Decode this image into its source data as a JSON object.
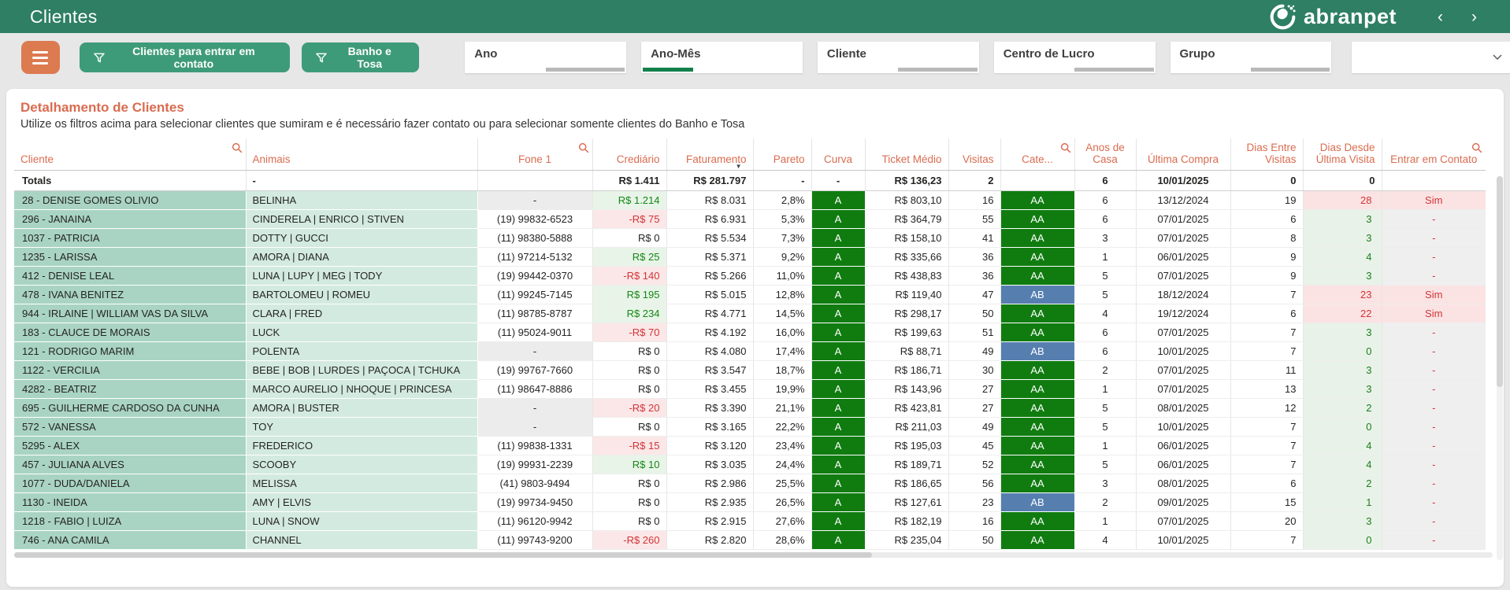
{
  "topbar": {
    "title": "Clientes",
    "brand": "abranpet",
    "nav_back": "‹",
    "nav_forward": "›"
  },
  "filters": {
    "buttons": [
      {
        "label": "Clientes para entrar em contato"
      },
      {
        "label": "Banho e Tosa"
      }
    ],
    "slicers": [
      {
        "label": "Ano",
        "has_selection": false
      },
      {
        "label": "Ano-Mês",
        "has_selection": true
      },
      {
        "label": "Cliente",
        "has_selection": false
      },
      {
        "label": "Centro de Lucro",
        "has_selection": false
      },
      {
        "label": "Grupo",
        "has_selection": false
      }
    ],
    "dropdown": {
      "value": ""
    }
  },
  "card": {
    "title": "Detalhamento de Clientes",
    "subtitle": "Utilize os filtros acima para selecionar clientes que sumiram e é necessário fazer contato ou para selecionar somente clientes do Banho e Tosa"
  },
  "colors": {
    "topbar_green": "#2E7F63",
    "button_green": "#3E9B79",
    "hamburger_orange": "#DC7A50",
    "header_coral": "#D96C50",
    "cliente_cell": "#A9D4C4",
    "animais_cell": "#D3EAE0",
    "badge_green": "#107C10",
    "badge_blue": "#567FB0",
    "positive_green": "#148714",
    "negative_red": "#D13438"
  },
  "table": {
    "columns": [
      {
        "key": "cliente",
        "label": "Cliente",
        "searchable": true
      },
      {
        "key": "animais",
        "label": "Animais"
      },
      {
        "key": "fone",
        "label": "Fone 1",
        "searchable": true
      },
      {
        "key": "crediario",
        "label": "Crediário"
      },
      {
        "key": "faturamento",
        "label": "Faturamento",
        "sorted": "desc"
      },
      {
        "key": "pareto",
        "label": "Pareto"
      },
      {
        "key": "curva",
        "label": "Curva"
      },
      {
        "key": "ticket",
        "label": "Ticket Médio"
      },
      {
        "key": "visitas",
        "label": "Visitas"
      },
      {
        "key": "cate",
        "label": "Cate...",
        "searchable": true
      },
      {
        "key": "anos",
        "label": "Anos de Casa"
      },
      {
        "key": "ultima",
        "label": "Última Compra"
      },
      {
        "key": "dias_entre",
        "label": "Dias Entre Visitas"
      },
      {
        "key": "dias_desde",
        "label": "Dias Desde Última Visita"
      },
      {
        "key": "contato",
        "label": "Entrar em Contato",
        "searchable": true
      }
    ],
    "totals": {
      "cliente": "Totals",
      "animais": "-",
      "fone": "",
      "crediario": "R$ 1.411",
      "faturamento": "R$ 281.797",
      "pareto": "-",
      "curva": "-",
      "ticket": "R$ 136,23",
      "visitas": "2",
      "cate": "",
      "anos": "6",
      "ultima": "10/01/2025",
      "dias_entre": "0",
      "dias_desde": "0",
      "contato": ""
    },
    "rows": [
      {
        "cliente": "28 - DENISE GOMES OLIVIO",
        "animais": "BELINHA",
        "fone": "-",
        "fone_empty": true,
        "crediario": "R$ 1.214",
        "crediario_v": "pos",
        "faturamento": "R$ 8.031",
        "pareto": "2,8%",
        "curva": "A",
        "ticket": "R$ 803,10",
        "visitas": "16",
        "cate": "AA",
        "anos": "6",
        "ultima": "13/12/2024",
        "dias_entre": "19",
        "dias_desde": "28",
        "dias_desde_v": "alert",
        "contato": "Sim",
        "contato_v": "sim"
      },
      {
        "cliente": "296 - JANAINA",
        "animais": "CINDERELA | ENRICO | STIVEN",
        "fone": "(19) 99832-6523",
        "fone_empty": false,
        "crediario": "-R$ 75",
        "crediario_v": "neg",
        "faturamento": "R$ 6.931",
        "pareto": "5,3%",
        "curva": "A",
        "ticket": "R$ 364,79",
        "visitas": "55",
        "cate": "AA",
        "anos": "6",
        "ultima": "07/01/2025",
        "dias_entre": "6",
        "dias_desde": "3",
        "dias_desde_v": "ok",
        "contato": "-",
        "contato_v": "dash"
      },
      {
        "cliente": "1037 - PATRICIA",
        "animais": "DOTTY | GUCCI",
        "fone": "(11) 98380-5888",
        "fone_empty": false,
        "crediario": "R$ 0",
        "crediario_v": "zero",
        "faturamento": "R$ 5.534",
        "pareto": "7,3%",
        "curva": "A",
        "ticket": "R$ 158,10",
        "visitas": "41",
        "cate": "AA",
        "anos": "3",
        "ultima": "07/01/2025",
        "dias_entre": "8",
        "dias_desde": "3",
        "dias_desde_v": "ok",
        "contato": "-",
        "contato_v": "dash"
      },
      {
        "cliente": "1235 - LARISSA",
        "animais": "AMORA | DIANA",
        "fone": "(11) 97214-5132",
        "fone_empty": false,
        "crediario": "R$ 25",
        "crediario_v": "pos",
        "faturamento": "R$ 5.371",
        "pareto": "9,2%",
        "curva": "A",
        "ticket": "R$ 335,66",
        "visitas": "36",
        "cate": "AA",
        "anos": "1",
        "ultima": "06/01/2025",
        "dias_entre": "9",
        "dias_desde": "4",
        "dias_desde_v": "ok",
        "contato": "-",
        "contato_v": "dash"
      },
      {
        "cliente": "412 - DENISE LEAL",
        "animais": "LUNA | LUPY | MEG | TODY",
        "fone": "(19) 99442-0370",
        "fone_empty": false,
        "crediario": "-R$ 140",
        "crediario_v": "neg",
        "faturamento": "R$ 5.266",
        "pareto": "11,0%",
        "curva": "A",
        "ticket": "R$ 438,83",
        "visitas": "36",
        "cate": "AA",
        "anos": "5",
        "ultima": "07/01/2025",
        "dias_entre": "9",
        "dias_desde": "3",
        "dias_desde_v": "ok",
        "contato": "-",
        "contato_v": "dash"
      },
      {
        "cliente": "478 - IVANA BENITEZ",
        "animais": "BARTOLOMEU | ROMEU",
        "fone": "(11) 99245-7145",
        "fone_empty": false,
        "crediario": "R$ 195",
        "crediario_v": "pos",
        "faturamento": "R$ 5.015",
        "pareto": "12,8%",
        "curva": "A",
        "ticket": "R$ 119,40",
        "visitas": "47",
        "cate": "AB",
        "anos": "5",
        "ultima": "18/12/2024",
        "dias_entre": "7",
        "dias_desde": "23",
        "dias_desde_v": "alert",
        "contato": "Sim",
        "contato_v": "sim"
      },
      {
        "cliente": "944 - IRLAINE | WILLIAM VAS DA SILVA",
        "animais": "CLARA | FRED",
        "fone": "(11) 98785-8787",
        "fone_empty": false,
        "crediario": "R$ 234",
        "crediario_v": "pos",
        "faturamento": "R$ 4.771",
        "pareto": "14,5%",
        "curva": "A",
        "ticket": "R$ 298,17",
        "visitas": "50",
        "cate": "AA",
        "anos": "4",
        "ultima": "19/12/2024",
        "dias_entre": "6",
        "dias_desde": "22",
        "dias_desde_v": "alert",
        "contato": "Sim",
        "contato_v": "sim"
      },
      {
        "cliente": "183 - CLAUCE DE MORAIS",
        "animais": "LUCK",
        "fone": "(11) 95024-9011",
        "fone_empty": false,
        "crediario": "-R$ 70",
        "crediario_v": "neg",
        "faturamento": "R$ 4.192",
        "pareto": "16,0%",
        "curva": "A",
        "ticket": "R$ 199,63",
        "visitas": "51",
        "cate": "AA",
        "anos": "6",
        "ultima": "07/01/2025",
        "dias_entre": "7",
        "dias_desde": "3",
        "dias_desde_v": "ok",
        "contato": "-",
        "contato_v": "dash"
      },
      {
        "cliente": "121 - RODRIGO MARIM",
        "animais": "POLENTA",
        "fone": "-",
        "fone_empty": true,
        "crediario": "R$ 0",
        "crediario_v": "zero",
        "faturamento": "R$ 4.080",
        "pareto": "17,4%",
        "curva": "A",
        "ticket": "R$ 88,71",
        "visitas": "49",
        "cate": "AB",
        "anos": "6",
        "ultima": "10/01/2025",
        "dias_entre": "7",
        "dias_desde": "0",
        "dias_desde_v": "ok",
        "contato": "-",
        "contato_v": "dash"
      },
      {
        "cliente": "1122 - VERCILIA",
        "animais": "BEBE | BOB | LURDES | PAÇOCA | TCHUKA",
        "fone": "(19) 99767-7660",
        "fone_empty": false,
        "crediario": "R$ 0",
        "crediario_v": "zero",
        "faturamento": "R$ 3.547",
        "pareto": "18,7%",
        "curva": "A",
        "ticket": "R$ 186,71",
        "visitas": "30",
        "cate": "AA",
        "anos": "2",
        "ultima": "07/01/2025",
        "dias_entre": "11",
        "dias_desde": "3",
        "dias_desde_v": "ok",
        "contato": "-",
        "contato_v": "dash"
      },
      {
        "cliente": "4282 - BEATRIZ",
        "animais": "MARCO AURELIO | NHOQUE | PRINCESA",
        "fone": "(11) 98647-8886",
        "fone_empty": false,
        "crediario": "R$ 0",
        "crediario_v": "zero",
        "faturamento": "R$ 3.455",
        "pareto": "19,9%",
        "curva": "A",
        "ticket": "R$ 143,96",
        "visitas": "27",
        "cate": "AA",
        "anos": "1",
        "ultima": "07/01/2025",
        "dias_entre": "13",
        "dias_desde": "3",
        "dias_desde_v": "ok",
        "contato": "-",
        "contato_v": "dash"
      },
      {
        "cliente": "695 - GUILHERME CARDOSO DA CUNHA",
        "animais": "AMORA | BUSTER",
        "fone": "-",
        "fone_empty": true,
        "crediario": "-R$ 20",
        "crediario_v": "neg",
        "faturamento": "R$ 3.390",
        "pareto": "21,1%",
        "curva": "A",
        "ticket": "R$ 423,81",
        "visitas": "27",
        "cate": "AA",
        "anos": "5",
        "ultima": "08/01/2025",
        "dias_entre": "12",
        "dias_desde": "2",
        "dias_desde_v": "ok",
        "contato": "-",
        "contato_v": "dash"
      },
      {
        "cliente": "572 - VANESSA",
        "animais": "TOY",
        "fone": "-",
        "fone_empty": true,
        "crediario": "R$ 0",
        "crediario_v": "zero",
        "faturamento": "R$ 3.165",
        "pareto": "22,2%",
        "curva": "A",
        "ticket": "R$ 211,03",
        "visitas": "49",
        "cate": "AA",
        "anos": "5",
        "ultima": "10/01/2025",
        "dias_entre": "7",
        "dias_desde": "0",
        "dias_desde_v": "ok",
        "contato": "-",
        "contato_v": "dash"
      },
      {
        "cliente": "5295 - ALEX",
        "animais": "FREDERICO",
        "fone": "(11) 99838-1331",
        "fone_empty": false,
        "crediario": "-R$ 15",
        "crediario_v": "neg",
        "faturamento": "R$ 3.120",
        "pareto": "23,4%",
        "curva": "A",
        "ticket": "R$ 195,03",
        "visitas": "45",
        "cate": "AA",
        "anos": "1",
        "ultima": "06/01/2025",
        "dias_entre": "7",
        "dias_desde": "4",
        "dias_desde_v": "ok",
        "contato": "-",
        "contato_v": "dash"
      },
      {
        "cliente": "457 - JULIANA ALVES",
        "animais": "SCOOBY",
        "fone": "(19) 99931-2239",
        "fone_empty": false,
        "crediario": "R$ 10",
        "crediario_v": "pos",
        "faturamento": "R$ 3.035",
        "pareto": "24,4%",
        "curva": "A",
        "ticket": "R$ 189,71",
        "visitas": "52",
        "cate": "AA",
        "anos": "5",
        "ultima": "06/01/2025",
        "dias_entre": "7",
        "dias_desde": "4",
        "dias_desde_v": "ok",
        "contato": "-",
        "contato_v": "dash"
      },
      {
        "cliente": "1077 - DUDA/DANIELA",
        "animais": "MELISSA",
        "fone": "(41) 9803-9494",
        "fone_empty": false,
        "crediario": "R$ 0",
        "crediario_v": "zero",
        "faturamento": "R$ 2.986",
        "pareto": "25,5%",
        "curva": "A",
        "ticket": "R$ 186,65",
        "visitas": "56",
        "cate": "AA",
        "anos": "3",
        "ultima": "08/01/2025",
        "dias_entre": "6",
        "dias_desde": "2",
        "dias_desde_v": "ok",
        "contato": "-",
        "contato_v": "dash"
      },
      {
        "cliente": "1130 - INEIDA",
        "animais": "AMY | ELVIS",
        "fone": "(19) 99734-9450",
        "fone_empty": false,
        "crediario": "R$ 0",
        "crediario_v": "zero",
        "faturamento": "R$ 2.935",
        "pareto": "26,5%",
        "curva": "A",
        "ticket": "R$ 127,61",
        "visitas": "23",
        "cate": "AB",
        "anos": "2",
        "ultima": "09/01/2025",
        "dias_entre": "15",
        "dias_desde": "1",
        "dias_desde_v": "ok",
        "contato": "-",
        "contato_v": "dash"
      },
      {
        "cliente": "1218 - FABIO | LUIZA",
        "animais": "LUNA | SNOW",
        "fone": "(11) 96120-9942",
        "fone_empty": false,
        "crediario": "R$ 0",
        "crediario_v": "zero",
        "faturamento": "R$ 2.915",
        "pareto": "27,6%",
        "curva": "A",
        "ticket": "R$ 182,19",
        "visitas": "16",
        "cate": "AA",
        "anos": "1",
        "ultima": "07/01/2025",
        "dias_entre": "20",
        "dias_desde": "3",
        "dias_desde_v": "ok",
        "contato": "-",
        "contato_v": "dash"
      },
      {
        "cliente": "746 - ANA CAMILA",
        "animais": "CHANNEL",
        "fone": "(11) 99743-9200",
        "fone_empty": false,
        "crediario": "-R$ 260",
        "crediario_v": "neg",
        "faturamento": "R$ 2.820",
        "pareto": "28,6%",
        "curva": "A",
        "ticket": "R$ 235,04",
        "visitas": "50",
        "cate": "AA",
        "anos": "4",
        "ultima": "10/01/2025",
        "dias_entre": "7",
        "dias_desde": "0",
        "dias_desde_v": "ok",
        "contato": "-",
        "contato_v": "dash"
      }
    ]
  }
}
